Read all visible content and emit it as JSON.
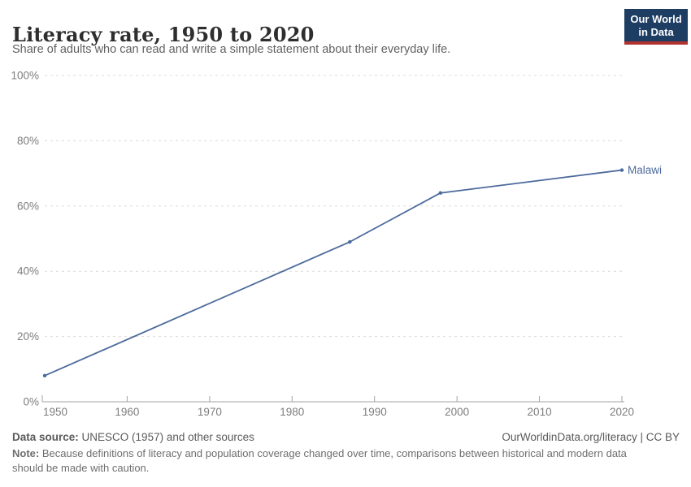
{
  "header": {
    "logo_line1": "Our World",
    "logo_line2": "in Data"
  },
  "footer": {
    "data_source_label": "Data source:",
    "data_source_value": "UNESCO (1957) and other sources",
    "link_text": "OurWorldinData.org/literacy | CC BY",
    "note_label": "Note:",
    "note_text": "Because definitions of literacy and population coverage changed over time, comparisons between historical and modern data should be made with caution."
  },
  "colors": {
    "series_blue": "#4C6A9C",
    "logo_navy": "#1d3d63",
    "logo_red": "#b13331",
    "grid": "#dcdcdc",
    "axis": "#a3a3a3",
    "tick_label": "#7d7d7d"
  },
  "chart_data": {
    "type": "line",
    "title": "Literacy rate, 1950 to 2020",
    "subtitle": "Share of adults who can read and write a simple statement about their everyday life.",
    "xlabel": "",
    "ylabel": "",
    "xlim": [
      1950,
      2020
    ],
    "ylim": [
      0,
      100
    ],
    "xticks": [
      1950,
      1960,
      1970,
      1980,
      1990,
      2000,
      2010,
      2020
    ],
    "yticks": [
      0,
      20,
      40,
      60,
      80,
      100
    ],
    "ytick_suffix": "%",
    "grid": "horizontal-dashed",
    "legend_position": "end-of-line-label",
    "series": [
      {
        "name": "Malawi",
        "color": "#4C6A9C",
        "points": [
          [
            1950,
            8
          ],
          [
            1987,
            49
          ],
          [
            1998,
            64
          ],
          [
            2020,
            71
          ]
        ]
      }
    ]
  }
}
